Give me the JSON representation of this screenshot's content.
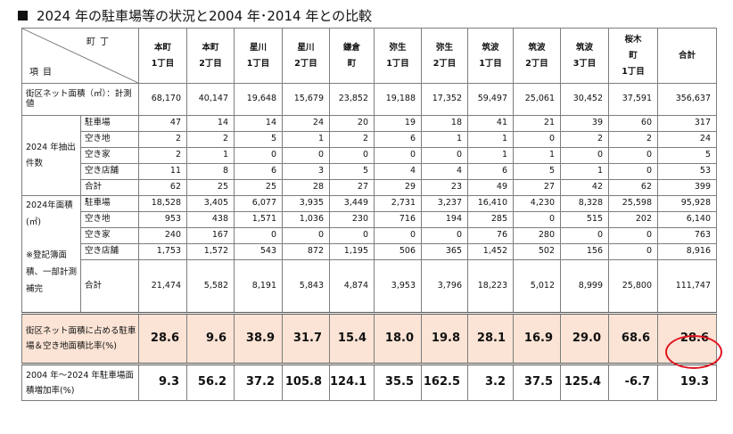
{
  "title": "2024 年の駐車場等の状況と2004 年･2014 年との比較",
  "corner": {
    "top_right": "町丁",
    "bottom_left": "項目"
  },
  "columns": [
    [
      "本町",
      "1丁目"
    ],
    [
      "本町",
      "2丁目"
    ],
    [
      "星川",
      "1丁目"
    ],
    [
      "星川",
      "2丁目"
    ],
    [
      "鎌倉",
      "町"
    ],
    [
      "弥生",
      "1丁目"
    ],
    [
      "弥生",
      "2丁目"
    ],
    [
      "筑波",
      "1丁目"
    ],
    [
      "筑波",
      "2丁目"
    ],
    [
      "筑波",
      "3丁目"
    ],
    [
      "桜木",
      "町",
      "1丁目"
    ],
    [
      "合計"
    ]
  ],
  "area_row": {
    "label": "街区ネット面積（㎡）：計測値",
    "values": [
      "68,170",
      "40,147",
      "19,648",
      "15,679",
      "23,852",
      "19,188",
      "17,352",
      "59,497",
      "25,061",
      "30,452",
      "37,591",
      "356,637"
    ]
  },
  "count_group": {
    "label": "2024 年抽出件数",
    "rows": [
      {
        "name": "駐車場",
        "values": [
          "47",
          "14",
          "14",
          "24",
          "20",
          "19",
          "18",
          "41",
          "21",
          "39",
          "60",
          "317"
        ]
      },
      {
        "name": "空き地",
        "values": [
          "2",
          "2",
          "5",
          "1",
          "2",
          "6",
          "1",
          "1",
          "0",
          "2",
          "2",
          "24"
        ]
      },
      {
        "name": "空き家",
        "values": [
          "2",
          "1",
          "0",
          "0",
          "0",
          "0",
          "0",
          "1",
          "1",
          "0",
          "0",
          "5"
        ]
      },
      {
        "name": "空き店舗",
        "values": [
          "11",
          "8",
          "6",
          "3",
          "5",
          "4",
          "4",
          "6",
          "5",
          "1",
          "0",
          "53"
        ]
      },
      {
        "name": "合計",
        "values": [
          "62",
          "25",
          "25",
          "28",
          "27",
          "29",
          "23",
          "49",
          "27",
          "42",
          "62",
          "399"
        ]
      }
    ]
  },
  "area_group": {
    "label_a": "2024年面積(㎡)",
    "label_b": "※登記簿面積、一部計測補完",
    "rows": [
      {
        "name": "駐車場",
        "values": [
          "18,528",
          "3,405",
          "6,077",
          "3,935",
          "3,449",
          "2,731",
          "3,237",
          "16,410",
          "4,230",
          "8,328",
          "25,598",
          "95,928"
        ]
      },
      {
        "name": "空き地",
        "values": [
          "953",
          "438",
          "1,571",
          "1,036",
          "230",
          "716",
          "194",
          "285",
          "0",
          "515",
          "202",
          "6,140"
        ]
      },
      {
        "name": "空き家",
        "values": [
          "240",
          "167",
          "0",
          "0",
          "0",
          "0",
          "0",
          "76",
          "280",
          "0",
          "0",
          "763"
        ]
      },
      {
        "name": "空き店舗",
        "values": [
          "1,753",
          "1,572",
          "543",
          "872",
          "1,195",
          "506",
          "365",
          "1,452",
          "502",
          "156",
          "0",
          "8,916"
        ]
      },
      {
        "name": "合計",
        "values": [
          "21,474",
          "5,582",
          "8,191",
          "5,843",
          "4,874",
          "3,953",
          "3,796",
          "18,223",
          "5,012",
          "8,999",
          "25,800",
          "111,747"
        ]
      }
    ]
  },
  "ratio_row": {
    "label": "街区ネット面積に占める駐車場＆空き地面積比率(%)",
    "values": [
      "28.6",
      "9.6",
      "38.9",
      "31.7",
      "15.4",
      "18.0",
      "19.8",
      "28.1",
      "16.9",
      "29.0",
      "68.6",
      "28.6"
    ]
  },
  "growth_row": {
    "label": "2004 年～2024 年駐車場面積増加率(%)",
    "values": [
      "9.3",
      "56.2",
      "37.2",
      "105.8",
      "124.1",
      "35.5",
      "162.5",
      "3.2",
      "37.5",
      "125.4",
      "-6.7",
      "19.3"
    ]
  },
  "colors": {
    "ratio_fill": "#fbe4d5",
    "highlight_circle": "#e0141e",
    "grid": "#7d7d7d"
  }
}
